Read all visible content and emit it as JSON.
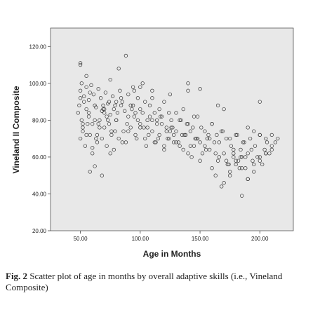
{
  "chart_data": {
    "type": "scatter",
    "title": "",
    "xlabel": "Age in Months",
    "ylabel": "Vineland II Composite",
    "xlim": [
      25,
      228
    ],
    "ylim": [
      20,
      130
    ],
    "xticks": [
      50,
      100,
      150,
      200
    ],
    "yticks": [
      20,
      40,
      60,
      80,
      100,
      120
    ],
    "xtick_labels": [
      "50.00",
      "100.00",
      "150.00",
      "200.00"
    ],
    "ytick_labels": [
      "20.00",
      "40.00",
      "60.00",
      "80.00",
      "100.00",
      "120.00"
    ],
    "grid": false,
    "background": "#e8e8e8",
    "marker": "open-circle",
    "marker_color": "#333333",
    "series": [
      {
        "x": [
          48,
          49,
          50,
          51,
          52,
          53,
          55,
          57,
          58,
          60,
          62,
          64,
          66,
          68,
          70,
          72,
          74,
          76,
          78,
          80,
          50,
          52,
          54,
          56,
          58,
          60,
          62,
          64,
          66,
          68,
          70,
          72,
          74,
          76,
          78,
          80,
          82,
          84,
          86,
          88,
          50,
          51,
          53,
          55,
          57,
          59,
          61,
          63,
          65,
          67,
          69,
          71,
          73,
          75,
          77,
          79,
          81,
          83,
          85,
          87,
          90,
          92,
          94,
          96,
          98,
          100,
          102,
          104,
          106,
          108,
          110,
          112,
          114,
          116,
          118,
          120,
          122,
          124,
          126,
          128,
          90,
          92,
          94,
          96,
          98,
          100,
          102,
          104,
          106,
          108,
          110,
          112,
          114,
          116,
          118,
          120,
          122,
          124,
          126,
          128,
          130,
          132,
          134,
          136,
          138,
          140,
          142,
          144,
          146,
          148,
          150,
          152,
          154,
          156,
          158,
          160,
          162,
          164,
          166,
          168,
          130,
          133,
          136,
          139,
          142,
          145,
          148,
          151,
          154,
          157,
          160,
          163,
          166,
          169,
          172,
          175,
          178,
          181,
          184,
          187,
          170,
          172,
          174,
          176,
          178,
          180,
          182,
          184,
          186,
          188,
          190,
          192,
          194,
          196,
          198,
          200,
          202,
          204,
          206,
          208,
          190,
          195,
          200,
          205,
          210,
          213,
          215,
          210,
          205,
          200,
          195,
          190,
          185,
          180,
          175,
          50,
          50,
          55,
          75,
          88,
          82,
          100,
          140,
          165,
          200,
          58,
          62,
          68,
          95,
          110,
          125,
          140,
          150,
          170,
          185,
          55,
          60,
          65,
          70,
          75,
          80,
          85,
          90,
          95,
          100,
          105,
          110,
          115,
          120,
          125,
          130,
          135,
          140,
          145,
          150,
          52,
          57,
          63,
          69,
          73,
          79,
          84,
          89,
          93,
          97,
          103,
          107,
          113,
          117,
          123,
          127,
          133,
          137,
          143,
          147,
          155,
          160,
          165,
          170,
          175,
          180,
          185,
          190,
          195,
          200,
          205,
          210,
          158,
          163,
          168,
          173,
          178,
          183,
          188,
          193
        ],
        "y": [
          84,
          88,
          92,
          80,
          76,
          90,
          86,
          82,
          95,
          78,
          88,
          72,
          80,
          85,
          76,
          82,
          90,
          74,
          86,
          80,
          70,
          74,
          66,
          78,
          72,
          62,
          80,
          68,
          76,
          70,
          84,
          66,
          78,
          72,
          64,
          80,
          70,
          88,
          74,
          68,
          96,
          100,
          93,
          98,
          91,
          99,
          94,
          87,
          97,
          92,
          86,
          95,
          89,
          83,
          93,
          88,
          84,
          96,
          90,
          85,
          82,
          76,
          88,
          72,
          80,
          78,
          84,
          70,
          76,
          82,
          74,
          68,
          80,
          72,
          78,
          66,
          74,
          70,
          76,
          68,
          94,
          88,
          98,
          84,
          92,
          86,
          100,
          90,
          80,
          88,
          96,
          84,
          78,
          86,
          82,
          90,
          76,
          84,
          80,
          72,
          74,
          68,
          80,
          64,
          72,
          78,
          66,
          76,
          70,
          82,
          68,
          62,
          74,
          70,
          64,
          78,
          68,
          72,
          60,
          74,
          84,
          80,
          86,
          78,
          74,
          82,
          70,
          76,
          66,
          72,
          78,
          62,
          68,
          74,
          58,
          70,
          64,
          72,
          60,
          68,
          62,
          70,
          56,
          66,
          60,
          72,
          58,
          64,
          68,
          54,
          62,
          70,
          58,
          66,
          60,
          72,
          56,
          64,
          68,
          62,
          76,
          74,
          72,
          70,
          72,
          68,
          70,
          64,
          62,
          60,
          56,
          48,
          54,
          58,
          52,
          111,
          110,
          104,
          102,
          115,
          108,
          98,
          100,
          88,
          90,
          52,
          55,
          50,
          96,
          92,
          94,
          96,
          97,
          86,
          39,
          72,
          65,
          78,
          86,
          62,
          90,
          68,
          74,
          82,
          76,
          66,
          80,
          70,
          64,
          74,
          68,
          72,
          62,
          66,
          58,
          78,
          84,
          70,
          88,
          80,
          74,
          92,
          78,
          86,
          70,
          76,
          72,
          68,
          82,
          70,
          76,
          66,
          72,
          60,
          70,
          64,
          54,
          58,
          46,
          50,
          56,
          60,
          48,
          52,
          58,
          62,
          66,
          70,
          50,
          44,
          56,
          62,
          54,
          60,
          64
        ]
      }
    ]
  },
  "caption": {
    "label": "Fig. 2",
    "text": " Scatter plot of age in months by overall adaptive skills (i.e., Vineland Composite)"
  }
}
